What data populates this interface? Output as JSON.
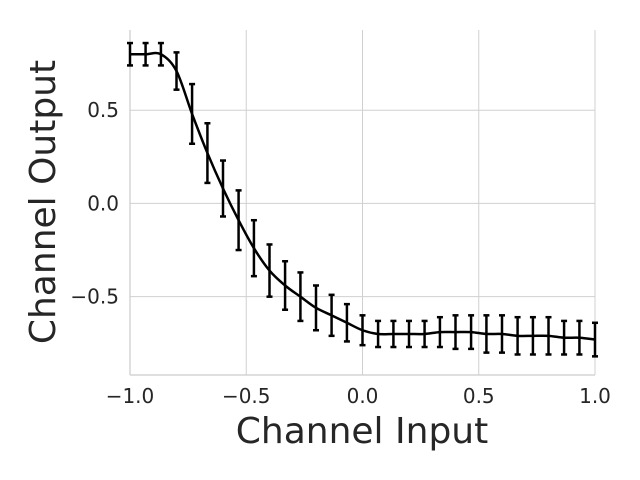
{
  "chart_data": {
    "type": "line",
    "title": "",
    "xlabel": "Channel Input",
    "ylabel": "Channel Output",
    "xlim": [
      -1.0,
      1.0
    ],
    "ylim": [
      -0.92,
      0.93
    ],
    "xticks": [
      -1.0,
      -0.5,
      0.0,
      0.5,
      1.0
    ],
    "xtick_labels": [
      "−1.0",
      "−0.5",
      "0.0",
      "0.5",
      "1.0"
    ],
    "yticks": [
      -0.5,
      0.0,
      0.5
    ],
    "ytick_labels": [
      "−0.5",
      "0.0",
      "0.5"
    ],
    "grid": true,
    "legend": "none",
    "line_color": "#000000",
    "x": [
      -1.0,
      -0.933,
      -0.867,
      -0.8,
      -0.733,
      -0.667,
      -0.6,
      -0.533,
      -0.467,
      -0.4,
      -0.333,
      -0.267,
      -0.2,
      -0.133,
      -0.067,
      0.0,
      0.067,
      0.133,
      0.2,
      0.267,
      0.333,
      0.4,
      0.467,
      0.533,
      0.6,
      0.667,
      0.733,
      0.8,
      0.867,
      0.933,
      1.0
    ],
    "y": [
      0.8,
      0.8,
      0.8,
      0.71,
      0.48,
      0.27,
      0.08,
      -0.09,
      -0.24,
      -0.36,
      -0.44,
      -0.5,
      -0.56,
      -0.6,
      -0.64,
      -0.68,
      -0.7,
      -0.7,
      -0.7,
      -0.7,
      -0.69,
      -0.69,
      -0.69,
      -0.7,
      -0.7,
      -0.71,
      -0.71,
      -0.71,
      -0.72,
      -0.72,
      -0.73
    ],
    "error": [
      0.06,
      0.06,
      0.06,
      0.1,
      0.16,
      0.16,
      0.15,
      0.16,
      0.15,
      0.14,
      0.13,
      0.13,
      0.12,
      0.11,
      0.1,
      0.08,
      0.07,
      0.07,
      0.07,
      0.07,
      0.08,
      0.09,
      0.09,
      0.1,
      0.1,
      0.1,
      0.1,
      0.1,
      0.09,
      0.09,
      0.09
    ]
  }
}
